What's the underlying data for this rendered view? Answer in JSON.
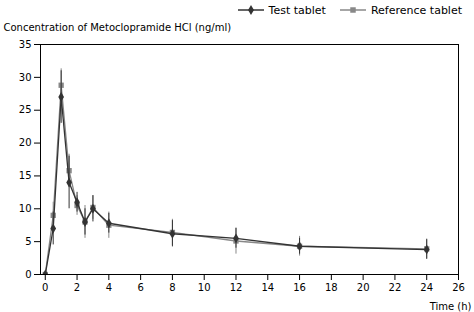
{
  "chart_data": {
    "type": "line",
    "xlabel": "Time (h)",
    "ylabel": "Concentration of Metoclopramide HCl (ng/ml)",
    "x": [
      0,
      0.5,
      1,
      1.5,
      2,
      2.5,
      3,
      4,
      8,
      12,
      16,
      24
    ],
    "series": [
      {
        "name": "Test tablet",
        "color": "#333333",
        "marker": "diamond",
        "values": [
          0,
          7.0,
          27.0,
          14.0,
          11.0,
          8.0,
          10.0,
          7.8,
          6.2,
          5.5,
          4.3,
          3.8
        ],
        "error_upper": [
          0,
          2.5,
          4.0,
          4.0,
          1.5,
          2.0,
          2.0,
          1.5,
          2.0,
          1.5,
          1.2,
          1.5
        ],
        "error_lower": [
          0,
          2.5,
          4.0,
          4.0,
          1.5,
          2.0,
          2.0,
          1.5,
          2.0,
          1.5,
          1.2,
          1.5
        ]
      },
      {
        "name": "Reference tablet",
        "color": "#888888",
        "marker": "square",
        "values": [
          0,
          9.0,
          28.8,
          15.8,
          10.5,
          8.0,
          10.2,
          7.5,
          6.4,
          5.1,
          4.3,
          3.9
        ],
        "error_upper": [
          0,
          2.0,
          2.5,
          2.5,
          1.5,
          2.5,
          1.8,
          2.0,
          2.0,
          2.0,
          1.5,
          1.5
        ],
        "error_lower": [
          0,
          2.0,
          2.5,
          2.5,
          1.5,
          2.5,
          1.8,
          2.0,
          2.0,
          2.0,
          1.5,
          1.5
        ]
      }
    ],
    "xlim": [
      -0.3,
      26
    ],
    "ylim": [
      0,
      35
    ],
    "xticks": [
      0,
      2,
      4,
      6,
      8,
      10,
      12,
      14,
      16,
      18,
      20,
      22,
      24,
      26
    ],
    "yticks": [
      0,
      5,
      10,
      15,
      20,
      25,
      30,
      35
    ],
    "legend": "right",
    "grid": false
  }
}
